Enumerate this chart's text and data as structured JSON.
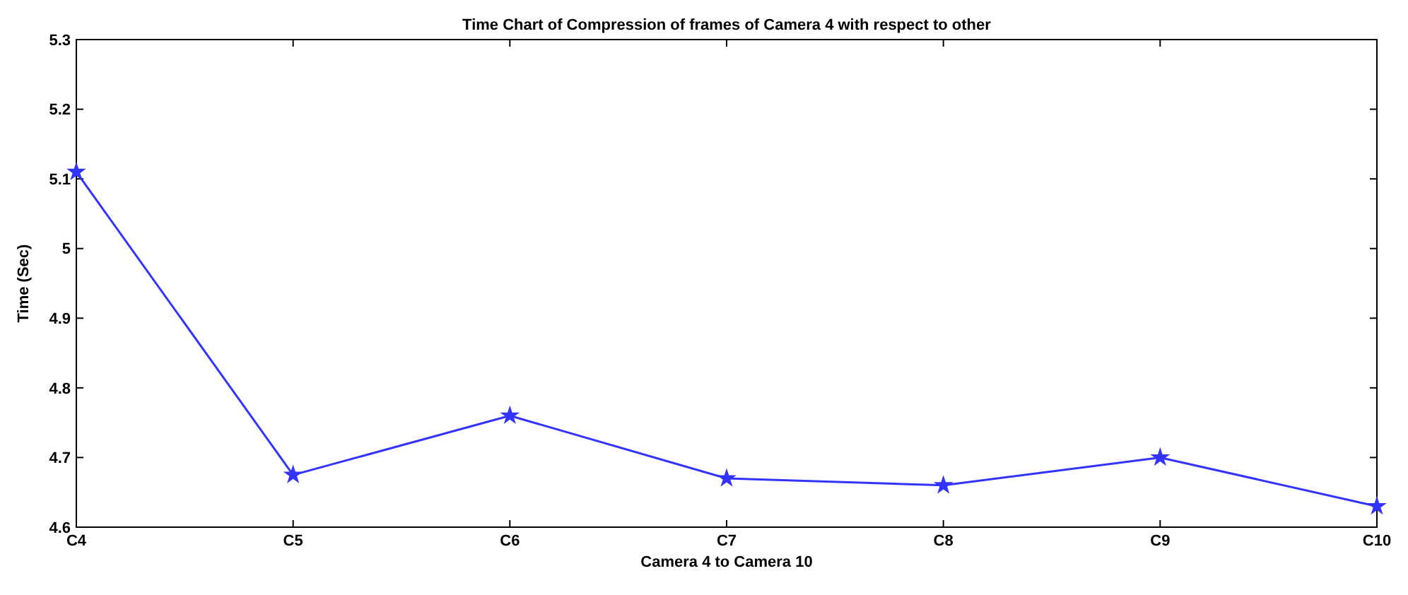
{
  "chart_data": {
    "type": "line",
    "title": "Time Chart of Compression of frames of Camera 4 with respect to other",
    "xlabel": "Camera 4 to Camera 10",
    "ylabel": "Time (Sec)",
    "categories": [
      "C4",
      "C5",
      "C6",
      "C7",
      "C8",
      "C9",
      "C10"
    ],
    "series": [
      {
        "color": "#3333ff",
        "values": [
          5.11,
          4.675,
          4.76,
          4.67,
          4.66,
          4.7,
          4.63
        ]
      }
    ],
    "ylim": [
      4.6,
      5.3
    ],
    "yticks": [
      4.6,
      4.7,
      4.8,
      4.9,
      5,
      5.1,
      5.2,
      5.3
    ],
    "marker": "star",
    "line_style": "solid",
    "grid": false
  }
}
